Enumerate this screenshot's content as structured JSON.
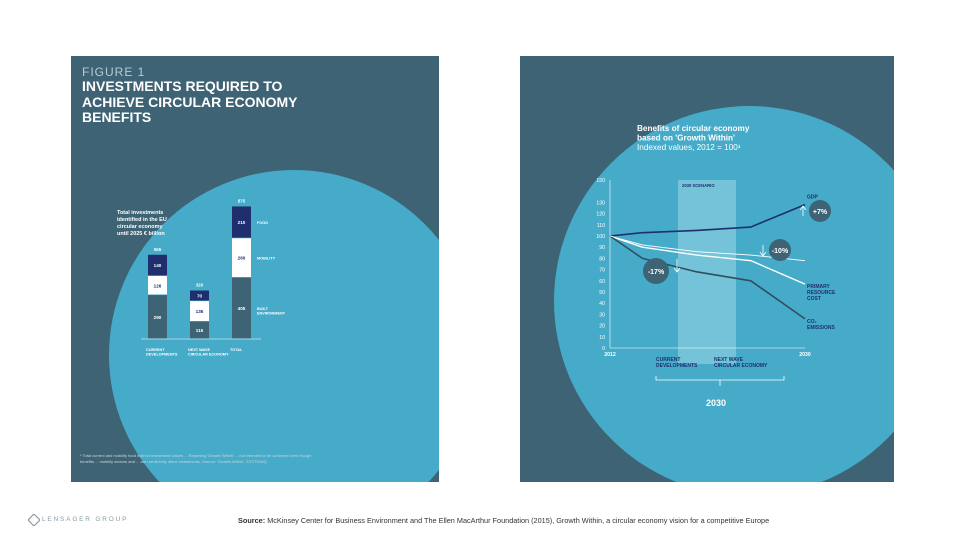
{
  "figure1": {
    "label": "FIGURE 1",
    "title": "INVESTMENTS REQUIRED TO ACHIEVE CIRCULAR ECONOMY BENEFITS",
    "total_label": "Total investments identified in the EU circular economy until 2025 € billion",
    "footnote": "* Total current and mobility food indirect investment values ... Reporting 'Growth Within' ... not intended to be achieved even though benefits ... mobility sectors and ... are not directly direct investments. Source: 'Growth Within', SYSTEMIQ",
    "chart_data": {
      "type": "bar",
      "categories": [
        "CURRENT DEVELOPMENTS",
        "NEXT WAVE CIRCULAR ECONOMY",
        "TOTAL"
      ],
      "series": [
        {
          "name": "BUILT ENVIRONMENT",
          "values": [
            290,
            115,
            405
          ]
        },
        {
          "name": "MOBILITY",
          "values": [
            126,
            135,
            260
          ]
        },
        {
          "name": "FOOD",
          "values": [
            140,
            70,
            210
          ]
        }
      ],
      "totals": [
        555,
        320,
        875
      ],
      "colors": {
        "built": "#3e6374",
        "mobility": "#ffffff",
        "food": "#1f2f6e"
      }
    }
  },
  "figure2": {
    "title": "Benefits of circular economy based on 'Growth Within' Indexed values, 2012 = 100¹",
    "scenario_label": "2030 SCENARIO",
    "x_label_1": "CURRENT DEVELOPMENTS",
    "x_label_2": "NEXT WAVE CIRCULAR ECONOMY",
    "period": "2030",
    "badge_gdp": "+7%",
    "badge_resource": "-10%",
    "badge_co2": "-17%",
    "chart_data": {
      "type": "line",
      "x": [
        2012,
        2015,
        2020,
        2025,
        2030
      ],
      "xticks": [
        "2012",
        "2030"
      ],
      "yticks": [
        0,
        10,
        20,
        30,
        40,
        50,
        60,
        70,
        80,
        90,
        100,
        110,
        120,
        130,
        150
      ],
      "ylim": [
        0,
        150
      ],
      "series": [
        {
          "name": "GDP",
          "values": [
            100,
            103,
            105,
            108,
            128
          ]
        },
        {
          "name": "PRIMARY RESOURCE COST",
          "values": [
            100,
            90,
            83,
            78,
            57
          ]
        },
        {
          "name": "CO₂ EMISSIONS",
          "values": [
            100,
            80,
            68,
            60,
            26
          ]
        },
        {
          "name": "",
          "values": [
            100,
            92,
            86,
            83,
            78
          ]
        }
      ],
      "colors": {
        "gdp": "#1f2f6e",
        "resource": "#ffffff",
        "co2": "#2f4f5e",
        "baseline": "#ffffff"
      }
    }
  },
  "source": {
    "label": "Source:",
    "text": "McKinsey Center for Business Environment and The Ellen MacArthur Foundation (2015), Growth Within, a circular economy vision for a competitive Europe"
  },
  "logo": {
    "text": "LENSAGER GROUP"
  }
}
